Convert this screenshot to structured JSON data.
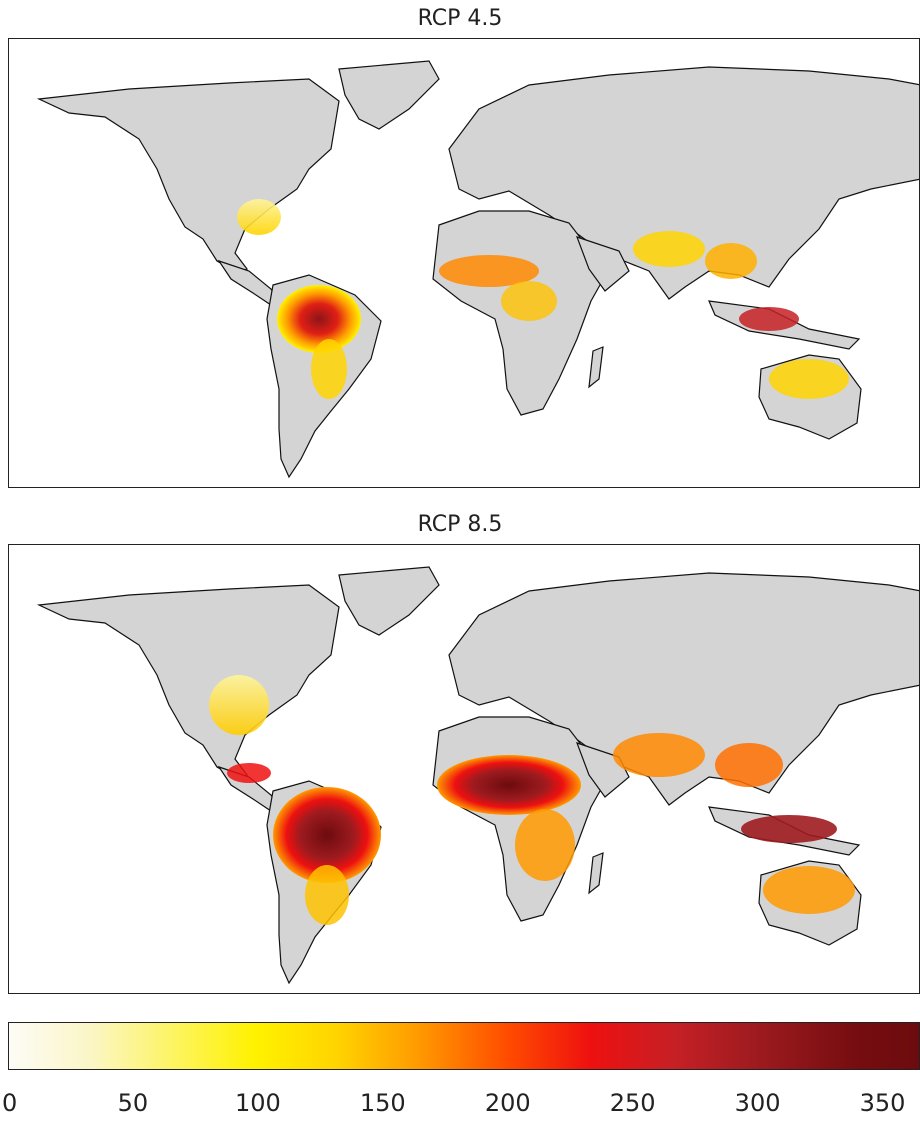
{
  "panels": [
    {
      "title": "RCP 4.5",
      "scenario": "rcp45"
    },
    {
      "title": "RCP 8.5",
      "scenario": "rcp85"
    }
  ],
  "colorbar": {
    "ticks": [
      "0",
      "50",
      "100",
      "150",
      "200",
      "250",
      "300",
      "350"
    ],
    "range": [
      0,
      365
    ],
    "colors": [
      "#fdfcf6",
      "#fff200",
      "#ff9a00",
      "#ee1010",
      "#9e1b1f",
      "#6c0b0e"
    ]
  },
  "colors": {
    "land": "#d4d4d4",
    "outline": "#111111",
    "unsuitable": "#ffffff"
  }
}
